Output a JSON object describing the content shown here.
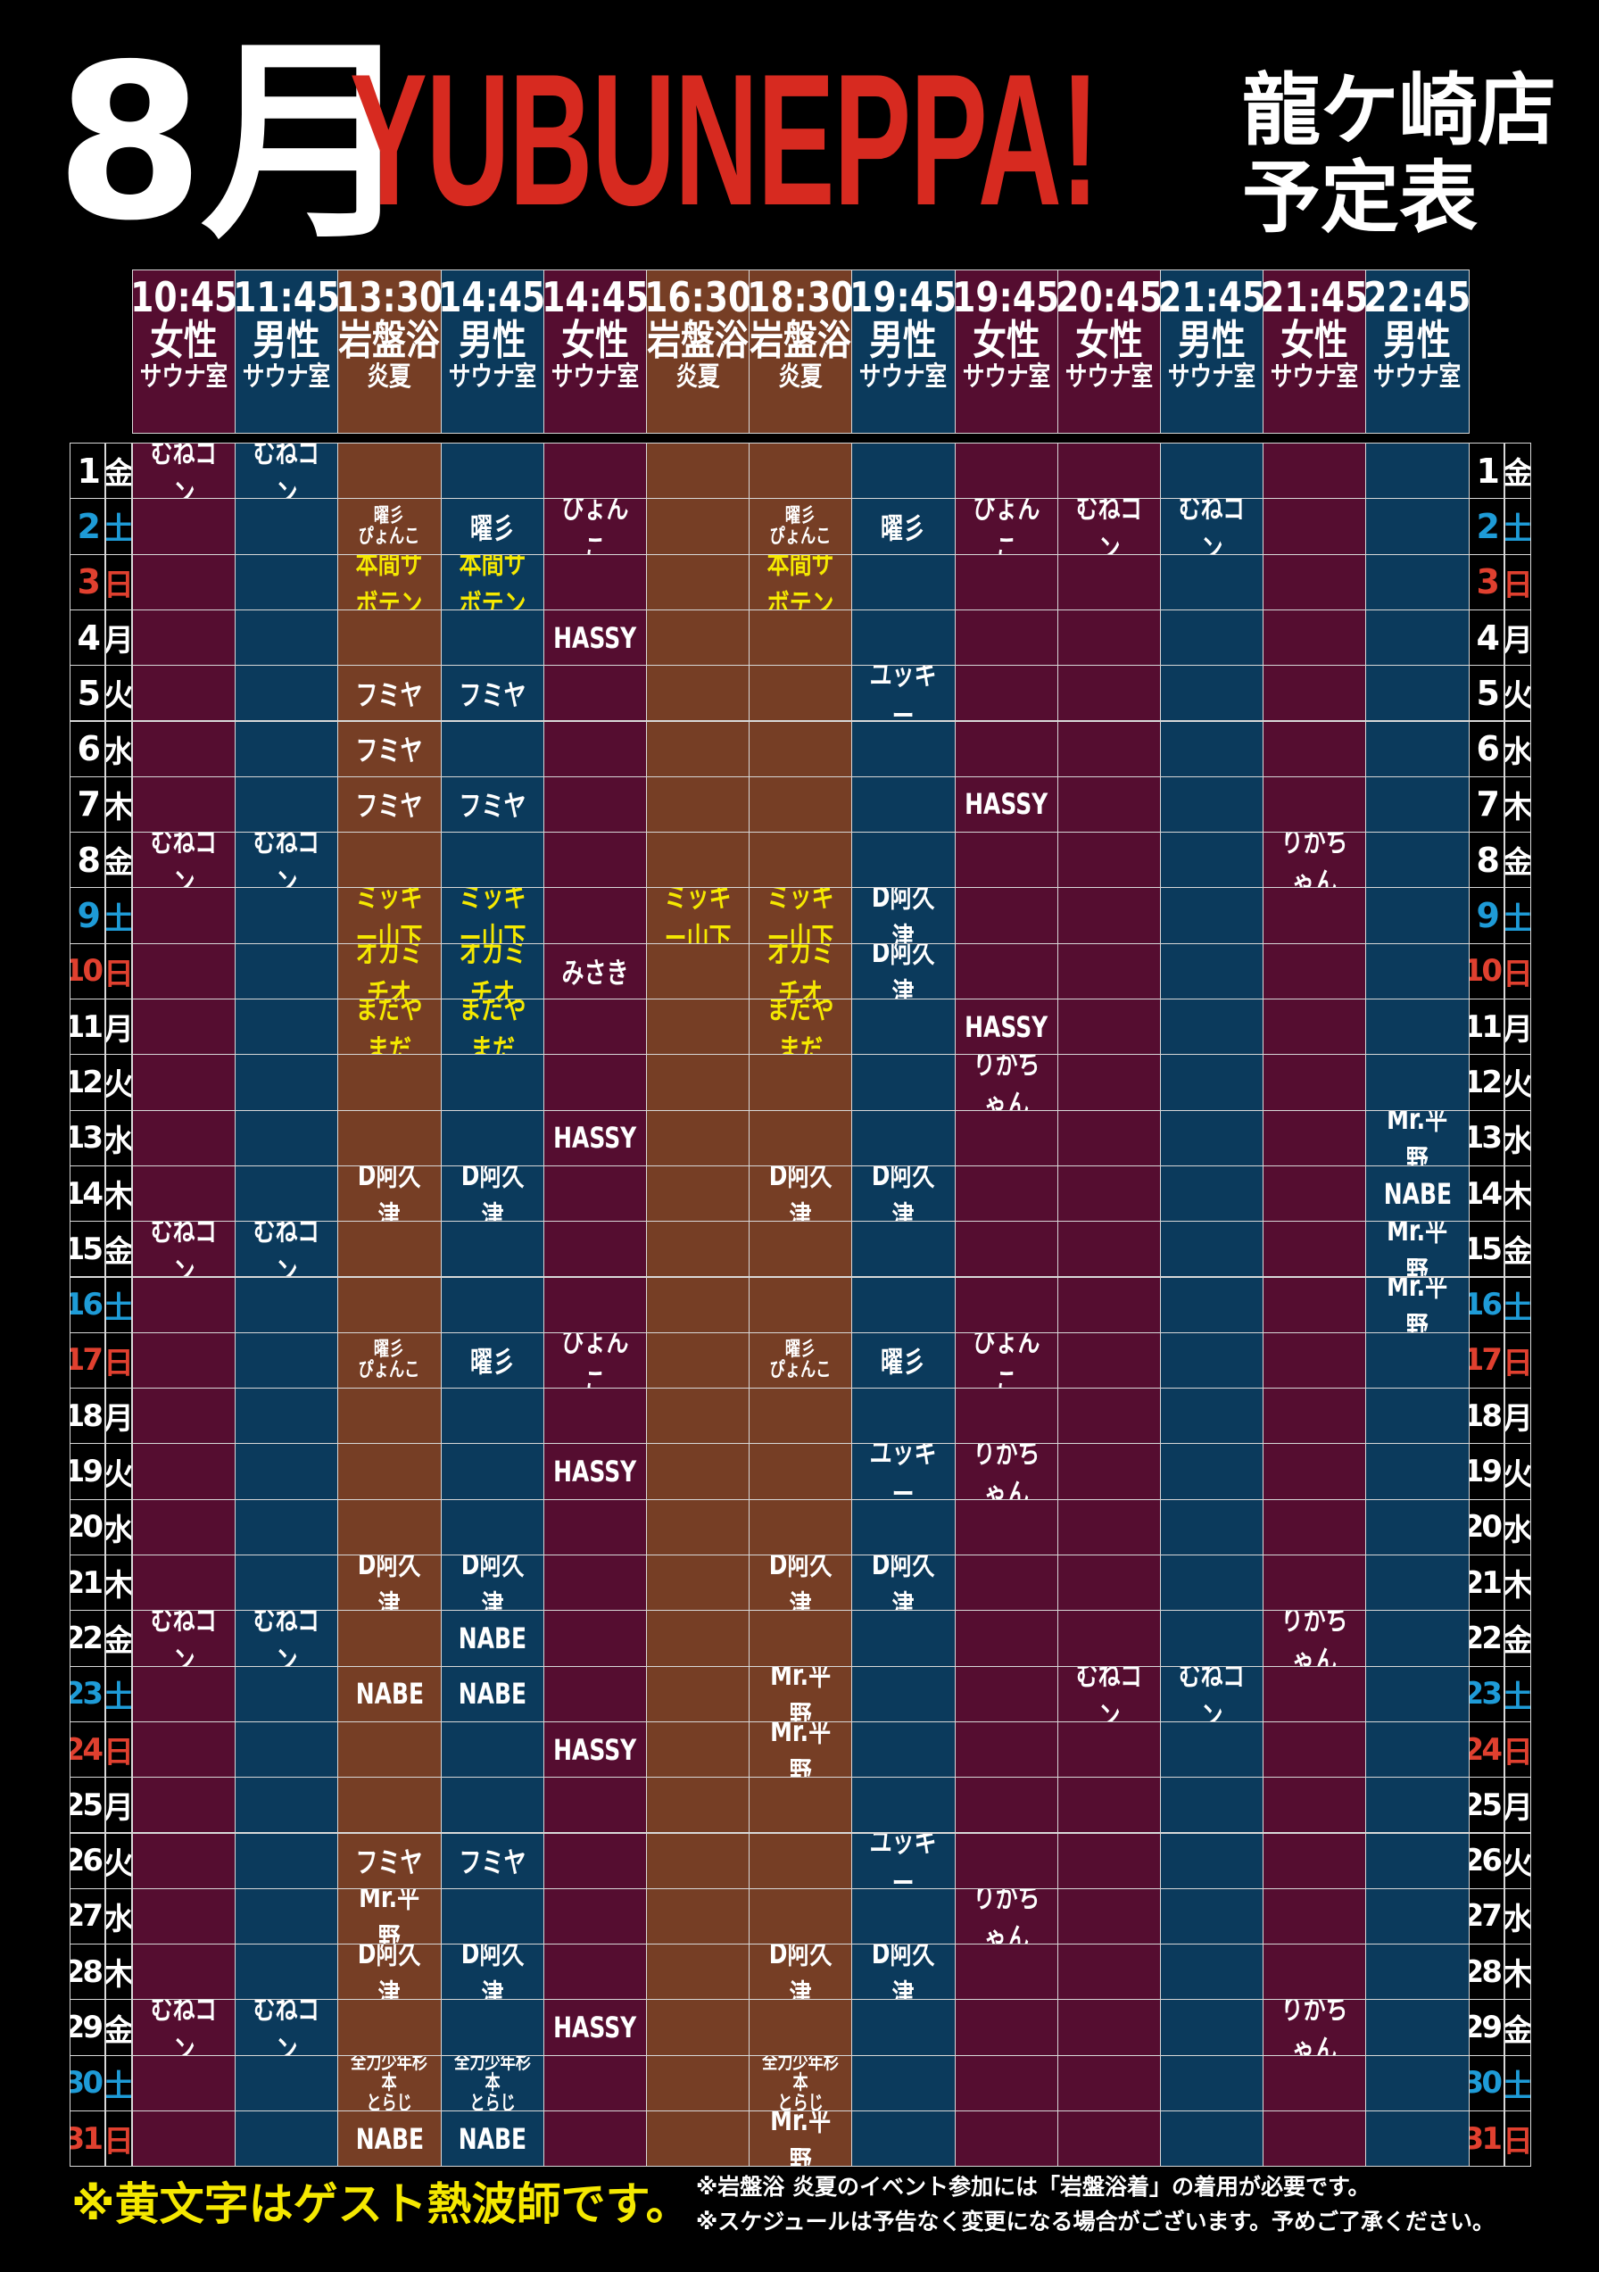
{
  "header": {
    "month": "8月",
    "brand": "YUBUNEPPA!",
    "store_line1": "龍ケ崎店",
    "store_line2": "予定表"
  },
  "colors": {
    "female": "#550d30",
    "male": "#0b3a5c",
    "ganban": "#763e25",
    "brand": "#d72a20",
    "guest": "#f5e800",
    "saturday": "#1e9bd7",
    "sunday": "#e0402f"
  },
  "columns": [
    {
      "time": "10:45",
      "kind": "女性",
      "room": "サウナ室",
      "type": "female"
    },
    {
      "time": "11:45",
      "kind": "男性",
      "room": "サウナ室",
      "type": "male"
    },
    {
      "time": "13:30",
      "kind": "岩盤浴",
      "room": "炎夏",
      "type": "ganban"
    },
    {
      "time": "14:45",
      "kind": "男性",
      "room": "サウナ室",
      "type": "male"
    },
    {
      "time": "14:45",
      "kind": "女性",
      "room": "サウナ室",
      "type": "female"
    },
    {
      "time": "16:30",
      "kind": "岩盤浴",
      "room": "炎夏",
      "type": "ganban"
    },
    {
      "time": "18:30",
      "kind": "岩盤浴",
      "room": "炎夏",
      "type": "ganban"
    },
    {
      "time": "19:45",
      "kind": "男性",
      "room": "サウナ室",
      "type": "male"
    },
    {
      "time": "19:45",
      "kind": "女性",
      "room": "サウナ室",
      "type": "female"
    },
    {
      "time": "20:45",
      "kind": "女性",
      "room": "サウナ室",
      "type": "female"
    },
    {
      "time": "21:45",
      "kind": "男性",
      "room": "サウナ室",
      "type": "male"
    },
    {
      "time": "21:45",
      "kind": "女性",
      "room": "サウナ室",
      "type": "female"
    },
    {
      "time": "22:45",
      "kind": "男性",
      "room": "サウナ室",
      "type": "male"
    }
  ],
  "days": [
    {
      "d": "1",
      "w": "金",
      "cells": [
        "むねゴン",
        "むねゴン",
        "",
        "",
        "",
        "",
        "",
        "",
        "",
        "",
        "",
        "",
        ""
      ]
    },
    {
      "d": "2",
      "w": "土",
      "cells": [
        "",
        "",
        "曜彡\nぴょんこ",
        "曜彡",
        "ぴょんこ",
        "",
        "曜彡\nぴょんこ",
        "曜彡",
        "ぴょんこ",
        "むねゴン",
        "むねゴン",
        "",
        ""
      ]
    },
    {
      "d": "3",
      "w": "日",
      "cells": [
        "",
        "",
        "本間サボテン",
        "本間サボテン",
        "",
        "",
        "本間サボテン",
        "",
        "",
        "",
        "",
        "",
        ""
      ],
      "guest": [
        2,
        3,
        6
      ]
    },
    {
      "d": "4",
      "w": "月",
      "cells": [
        "",
        "",
        "",
        "",
        "HASSY",
        "",
        "",
        "",
        "",
        "",
        "",
        "",
        ""
      ]
    },
    {
      "d": "5",
      "w": "火",
      "cells": [
        "",
        "",
        "フミヤ",
        "フミヤ",
        "",
        "",
        "",
        "ユッキー",
        "",
        "",
        "",
        "",
        ""
      ]
    },
    {
      "d": "6",
      "w": "水",
      "cells": [
        "",
        "",
        "フミヤ",
        "",
        "",
        "",
        "",
        "",
        "",
        "",
        "",
        "",
        ""
      ]
    },
    {
      "d": "7",
      "w": "木",
      "cells": [
        "",
        "",
        "フミヤ",
        "フミヤ",
        "",
        "",
        "",
        "",
        "HASSY",
        "",
        "",
        "",
        ""
      ]
    },
    {
      "d": "8",
      "w": "金",
      "cells": [
        "むねゴン",
        "むねゴン",
        "",
        "",
        "",
        "",
        "",
        "",
        "",
        "",
        "",
        "りかちゃん",
        ""
      ]
    },
    {
      "d": "9",
      "w": "土",
      "cells": [
        "",
        "",
        "ミッキー山下",
        "ミッキー山下",
        "",
        "ミッキー山下",
        "ミッキー山下",
        "D阿久津",
        "",
        "",
        "",
        "",
        ""
      ],
      "guest": [
        2,
        3,
        5,
        6
      ]
    },
    {
      "d": "10",
      "w": "日",
      "cells": [
        "",
        "",
        "オカミチオ",
        "オカミチオ",
        "みさき",
        "",
        "オカミチオ",
        "D阿久津",
        "",
        "",
        "",
        "",
        ""
      ],
      "guest": [
        2,
        3,
        6
      ]
    },
    {
      "d": "11",
      "w": "月",
      "cells": [
        "",
        "",
        "まだやまだ",
        "まだやまだ",
        "",
        "",
        "まだやまだ",
        "",
        "HASSY",
        "",
        "",
        "",
        ""
      ],
      "guest": [
        2,
        3,
        6
      ]
    },
    {
      "d": "12",
      "w": "火",
      "cells": [
        "",
        "",
        "",
        "",
        "",
        "",
        "",
        "",
        "りかちゃん",
        "",
        "",
        "",
        ""
      ]
    },
    {
      "d": "13",
      "w": "水",
      "cells": [
        "",
        "",
        "",
        "",
        "HASSY",
        "",
        "",
        "",
        "",
        "",
        "",
        "",
        "Mr.平野"
      ]
    },
    {
      "d": "14",
      "w": "木",
      "cells": [
        "",
        "",
        "D阿久津",
        "D阿久津",
        "",
        "",
        "D阿久津",
        "D阿久津",
        "",
        "",
        "",
        "",
        "NABE"
      ]
    },
    {
      "d": "15",
      "w": "金",
      "cells": [
        "むねゴン",
        "むねゴン",
        "",
        "",
        "",
        "",
        "",
        "",
        "",
        "",
        "",
        "",
        "Mr.平野"
      ]
    },
    {
      "d": "16",
      "w": "土",
      "cells": [
        "",
        "",
        "",
        "",
        "",
        "",
        "",
        "",
        "",
        "",
        "",
        "",
        "Mr.平野"
      ]
    },
    {
      "d": "17",
      "w": "日",
      "cells": [
        "",
        "",
        "曜彡\nぴょんこ",
        "曜彡",
        "ぴょんこ",
        "",
        "曜彡\nぴょんこ",
        "曜彡",
        "ぴょんこ",
        "",
        "",
        "",
        ""
      ]
    },
    {
      "d": "18",
      "w": "月",
      "cells": [
        "",
        "",
        "",
        "",
        "",
        "",
        "",
        "",
        "",
        "",
        "",
        "",
        ""
      ]
    },
    {
      "d": "19",
      "w": "火",
      "cells": [
        "",
        "",
        "",
        "",
        "HASSY",
        "",
        "",
        "ユッキー",
        "りかちゃん",
        "",
        "",
        "",
        ""
      ]
    },
    {
      "d": "20",
      "w": "水",
      "cells": [
        "",
        "",
        "",
        "",
        "",
        "",
        "",
        "",
        "",
        "",
        "",
        "",
        ""
      ]
    },
    {
      "d": "21",
      "w": "木",
      "cells": [
        "",
        "",
        "D阿久津",
        "D阿久津",
        "",
        "",
        "D阿久津",
        "D阿久津",
        "",
        "",
        "",
        "",
        ""
      ]
    },
    {
      "d": "22",
      "w": "金",
      "cells": [
        "むねゴン",
        "むねゴン",
        "",
        "NABE",
        "",
        "",
        "",
        "",
        "",
        "",
        "",
        "りかちゃん",
        ""
      ]
    },
    {
      "d": "23",
      "w": "土",
      "cells": [
        "",
        "",
        "NABE",
        "NABE",
        "",
        "",
        "Mr.平野",
        "",
        "",
        "むねゴン",
        "むねゴン",
        "",
        ""
      ]
    },
    {
      "d": "24",
      "w": "日",
      "cells": [
        "",
        "",
        "",
        "",
        "HASSY",
        "",
        "Mr.平野",
        "",
        "",
        "",
        "",
        "",
        ""
      ]
    },
    {
      "d": "25",
      "w": "月",
      "cells": [
        "",
        "",
        "",
        "",
        "",
        "",
        "",
        "",
        "",
        "",
        "",
        "",
        ""
      ]
    },
    {
      "d": "26",
      "w": "火",
      "cells": [
        "",
        "",
        "フミヤ",
        "フミヤ",
        "",
        "",
        "",
        "ユッキー",
        "",
        "",
        "",
        "",
        ""
      ]
    },
    {
      "d": "27",
      "w": "水",
      "cells": [
        "",
        "",
        "Mr.平野",
        "",
        "",
        "",
        "",
        "",
        "りかちゃん",
        "",
        "",
        "",
        ""
      ]
    },
    {
      "d": "28",
      "w": "木",
      "cells": [
        "",
        "",
        "D阿久津",
        "D阿久津",
        "",
        "",
        "D阿久津",
        "D阿久津",
        "",
        "",
        "",
        "",
        ""
      ]
    },
    {
      "d": "29",
      "w": "金",
      "cells": [
        "むねゴン",
        "むねゴン",
        "",
        "",
        "HASSY",
        "",
        "",
        "",
        "",
        "",
        "",
        "りかちゃん",
        ""
      ]
    },
    {
      "d": "30",
      "w": "土",
      "cells": [
        "",
        "",
        "全力少年杉本\nとらじ",
        "全力少年杉本\nとらじ",
        "",
        "",
        "全力少年杉本\nとらじ",
        "",
        "",
        "",
        "",
        "",
        ""
      ]
    },
    {
      "d": "31",
      "w": "日",
      "cells": [
        "",
        "",
        "NABE",
        "NABE",
        "",
        "",
        "Mr.平野",
        "",
        "",
        "",
        "",
        "",
        ""
      ]
    }
  ],
  "footer": {
    "note": "※黄文字はゲスト熱波師です。",
    "rule1": "※岩盤浴 炎夏のイベント参加には「岩盤浴着」の着用が必要です。",
    "rule2": "※スケジュールは予告なく変更になる場合がございます。予めご了承ください。"
  }
}
